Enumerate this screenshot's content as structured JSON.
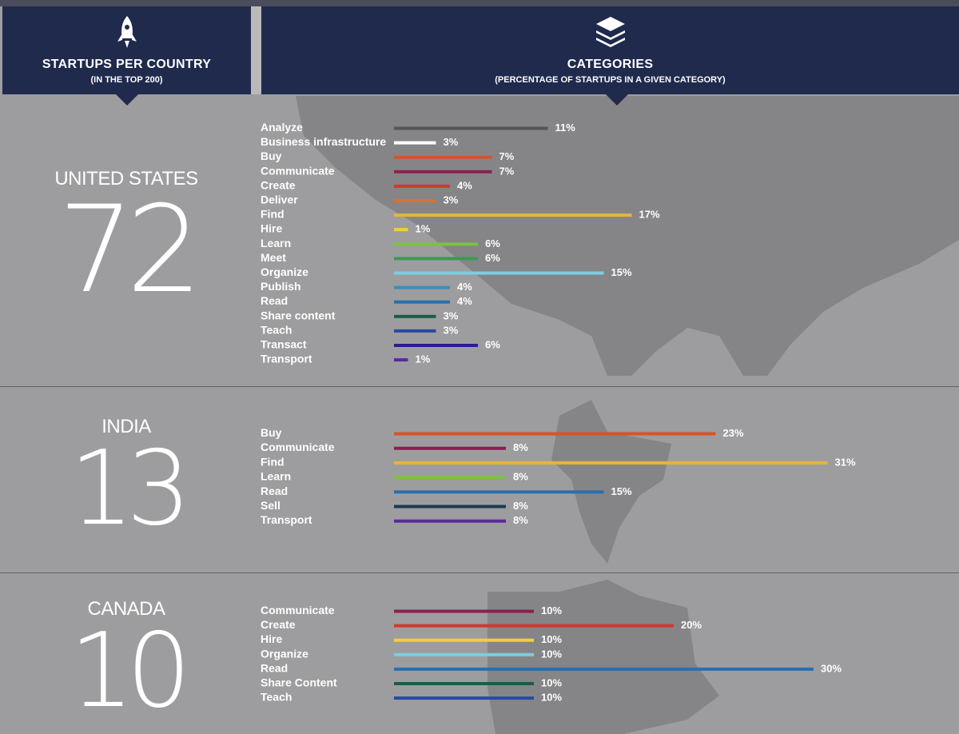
{
  "header_left": {
    "title": "STARTUPS PER COUNTRY",
    "subtitle": "(IN THE TOP 200)",
    "icon": "rocket-icon"
  },
  "header_right": {
    "title": "CATEGORIES",
    "subtitle": "(PERCENTAGE OF STARTUPS IN A GIVEN CATEGORY)",
    "icon": "layers-icon"
  },
  "colors": {
    "header_bg": "#1f2a4d",
    "background": "#9d9d9f",
    "Analyze": "#555558",
    "Business infrastructure": "#ffffff",
    "Buy": "#d4542a",
    "Communicate": "#8c1f52",
    "Create": "#cc3b33",
    "Deliver": "#d9722c",
    "Find": "#e7b43c",
    "Hire": "#f2cf3a",
    "Learn": "#7cc242",
    "Meet": "#3a9a52",
    "Organize": "#7dcde0",
    "Publish": "#3a8fb8",
    "Read": "#2a6fae",
    "Share content": "#1e5a4c",
    "Share Content": "#1e5a4c",
    "Teach": "#2a4aa2",
    "Transact": "#2a1d8e",
    "Transport": "#5a2a9a",
    "Sell": "#1a3a55"
  },
  "chart_data": [
    {
      "type": "bar",
      "country": "UNITED STATES",
      "count": "72",
      "categories": [
        "Analyze",
        "Business infrastructure",
        "Buy",
        "Communicate",
        "Create",
        "Deliver",
        "Find",
        "Hire",
        "Learn",
        "Meet",
        "Organize",
        "Publish",
        "Read",
        "Share content",
        "Teach",
        "Transact",
        "Transport"
      ],
      "values": [
        11,
        3,
        7,
        7,
        4,
        3,
        17,
        1,
        6,
        6,
        15,
        4,
        4,
        3,
        3,
        6,
        1
      ],
      "labels": [
        "11%",
        "3%",
        "7%",
        "7%",
        "4%",
        "3%",
        "17%",
        "1%",
        "6%",
        "6%",
        "15%",
        "4%",
        "4%",
        "3%",
        "3%",
        "6%",
        "1%"
      ]
    },
    {
      "type": "bar",
      "country": "INDIA",
      "count": "13",
      "categories": [
        "Buy",
        "Communicate",
        "Find",
        "Learn",
        "Read",
        "Sell",
        "Transport"
      ],
      "values": [
        23,
        8,
        31,
        8,
        15,
        8,
        8
      ],
      "labels": [
        "23%",
        "8%",
        "31%",
        "8%",
        "15%",
        "8%",
        "8%"
      ]
    },
    {
      "type": "bar",
      "country": "CANADA",
      "count": "10",
      "categories": [
        "Communicate",
        "Create",
        "Hire",
        "Organize",
        "Read",
        "Share Content",
        "Teach"
      ],
      "values": [
        10,
        20,
        10,
        10,
        30,
        10,
        10
      ],
      "labels": [
        "10%",
        "20%",
        "10%",
        "10%",
        "30%",
        "10%",
        "10%"
      ]
    }
  ]
}
